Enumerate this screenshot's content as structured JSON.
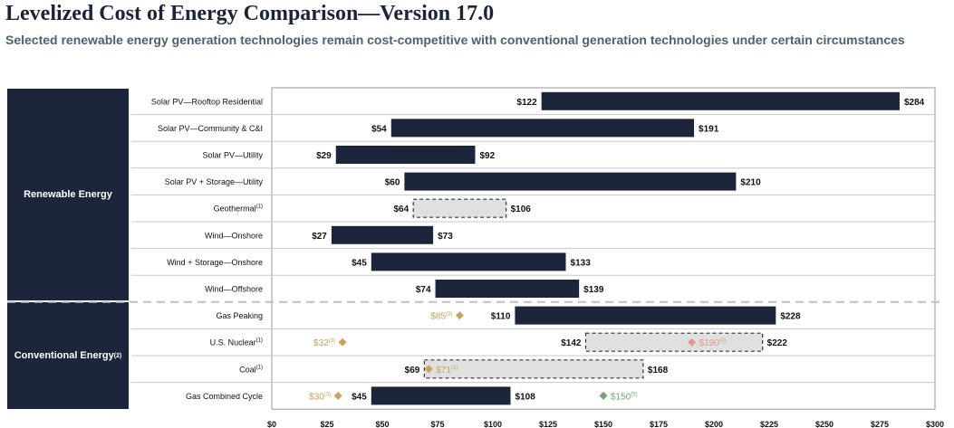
{
  "header": {
    "title": "Levelized Cost of Energy Comparison—Version 17.0",
    "subtitle": "Selected renewable energy generation technologies remain cost-competitive with conventional generation technologies under certain circumstances"
  },
  "colors": {
    "bar": "#1d253a",
    "dashed_fill": "#dfe1e1",
    "gold": "#c8a35a",
    "salmon": "#e4958a",
    "green": "#72a474",
    "category_box": "#1d253a"
  },
  "chart_data": {
    "type": "range-bar",
    "title": "Levelized Cost of Energy Comparison—Version 17.0",
    "xlim": [
      0,
      300
    ],
    "x_ticks": [
      0,
      25,
      50,
      75,
      100,
      125,
      150,
      175,
      200,
      225,
      250,
      275,
      300
    ],
    "x_tick_labels": [
      "$0",
      "$25",
      "$50",
      "$75",
      "$100",
      "$125",
      "$150",
      "$175",
      "$200",
      "$225",
      "$250",
      "$275",
      "$300"
    ],
    "groups": [
      {
        "label": "Renewable Energy",
        "sup": "",
        "rows": [
          0,
          7
        ]
      },
      {
        "label": "Conventional Energy",
        "sup": "(2)",
        "rows": [
          8,
          11
        ]
      }
    ],
    "rows": [
      {
        "label": "Solar PV—Rooftop Residential",
        "sup": "",
        "low": 122,
        "high": 284,
        "low_label": "$122",
        "high_label": "$284",
        "style": "solid",
        "markers": []
      },
      {
        "label": "Solar PV—Community & C&I",
        "sup": "",
        "low": 54,
        "high": 191,
        "low_label": "$54",
        "high_label": "$191",
        "style": "solid",
        "markers": []
      },
      {
        "label": "Solar PV—Utility",
        "sup": "",
        "low": 29,
        "high": 92,
        "low_label": "$29",
        "high_label": "$92",
        "style": "solid",
        "markers": []
      },
      {
        "label": "Solar PV + Storage—Utility",
        "sup": "",
        "low": 60,
        "high": 210,
        "low_label": "$60",
        "high_label": "$210",
        "style": "solid",
        "markers": []
      },
      {
        "label": "Geothermal",
        "sup": "(1)",
        "low": 64,
        "high": 106,
        "low_label": "$64",
        "high_label": "$106",
        "style": "dashed",
        "markers": []
      },
      {
        "label": "Wind—Onshore",
        "sup": "",
        "low": 27,
        "high": 73,
        "low_label": "$27",
        "high_label": "$73",
        "style": "solid",
        "markers": []
      },
      {
        "label": "Wind + Storage—Onshore",
        "sup": "",
        "low": 45,
        "high": 133,
        "low_label": "$45",
        "high_label": "$133",
        "style": "solid",
        "markers": []
      },
      {
        "label": "Wind—Offshore",
        "sup": "",
        "low": 74,
        "high": 139,
        "low_label": "$74",
        "high_label": "$139",
        "style": "solid",
        "markers": []
      },
      {
        "label": "Gas Peaking",
        "sup": "",
        "low": 110,
        "high": 228,
        "low_label": "$110",
        "high_label": "$228",
        "style": "solid",
        "markers": [
          {
            "value": 85,
            "text": "$85",
            "sup": "(3)",
            "color": "gold",
            "text_side": "left"
          }
        ]
      },
      {
        "label": "U.S. Nuclear",
        "sup": "(1)",
        "low": 142,
        "high": 222,
        "low_label": "$142",
        "high_label": "$222",
        "style": "dashed",
        "markers": [
          {
            "value": 32,
            "text": "$32",
            "sup": "(3)",
            "color": "gold",
            "text_side": "left"
          },
          {
            "value": 190,
            "text": "$190",
            "sup": "(4)",
            "color": "salmon",
            "text_side": "right"
          }
        ]
      },
      {
        "label": "Coal",
        "sup": "(1)",
        "low": 69,
        "high": 168,
        "low_label": "$69",
        "high_label": "$168",
        "style": "dashed",
        "markers": [
          {
            "value": 71,
            "text": "$71",
            "sup": "(3)",
            "color": "gold",
            "text_side": "right"
          }
        ]
      },
      {
        "label": "Gas Combined Cycle",
        "sup": "",
        "low": 45,
        "high": 108,
        "low_label": "$45",
        "high_label": "$108",
        "style": "solid",
        "markers": [
          {
            "value": 30,
            "text": "$30",
            "sup": "(3)",
            "color": "gold",
            "text_side": "left"
          },
          {
            "value": 150,
            "text": "$150",
            "sup": "(5)",
            "color": "green",
            "text_side": "right"
          }
        ]
      }
    ]
  }
}
